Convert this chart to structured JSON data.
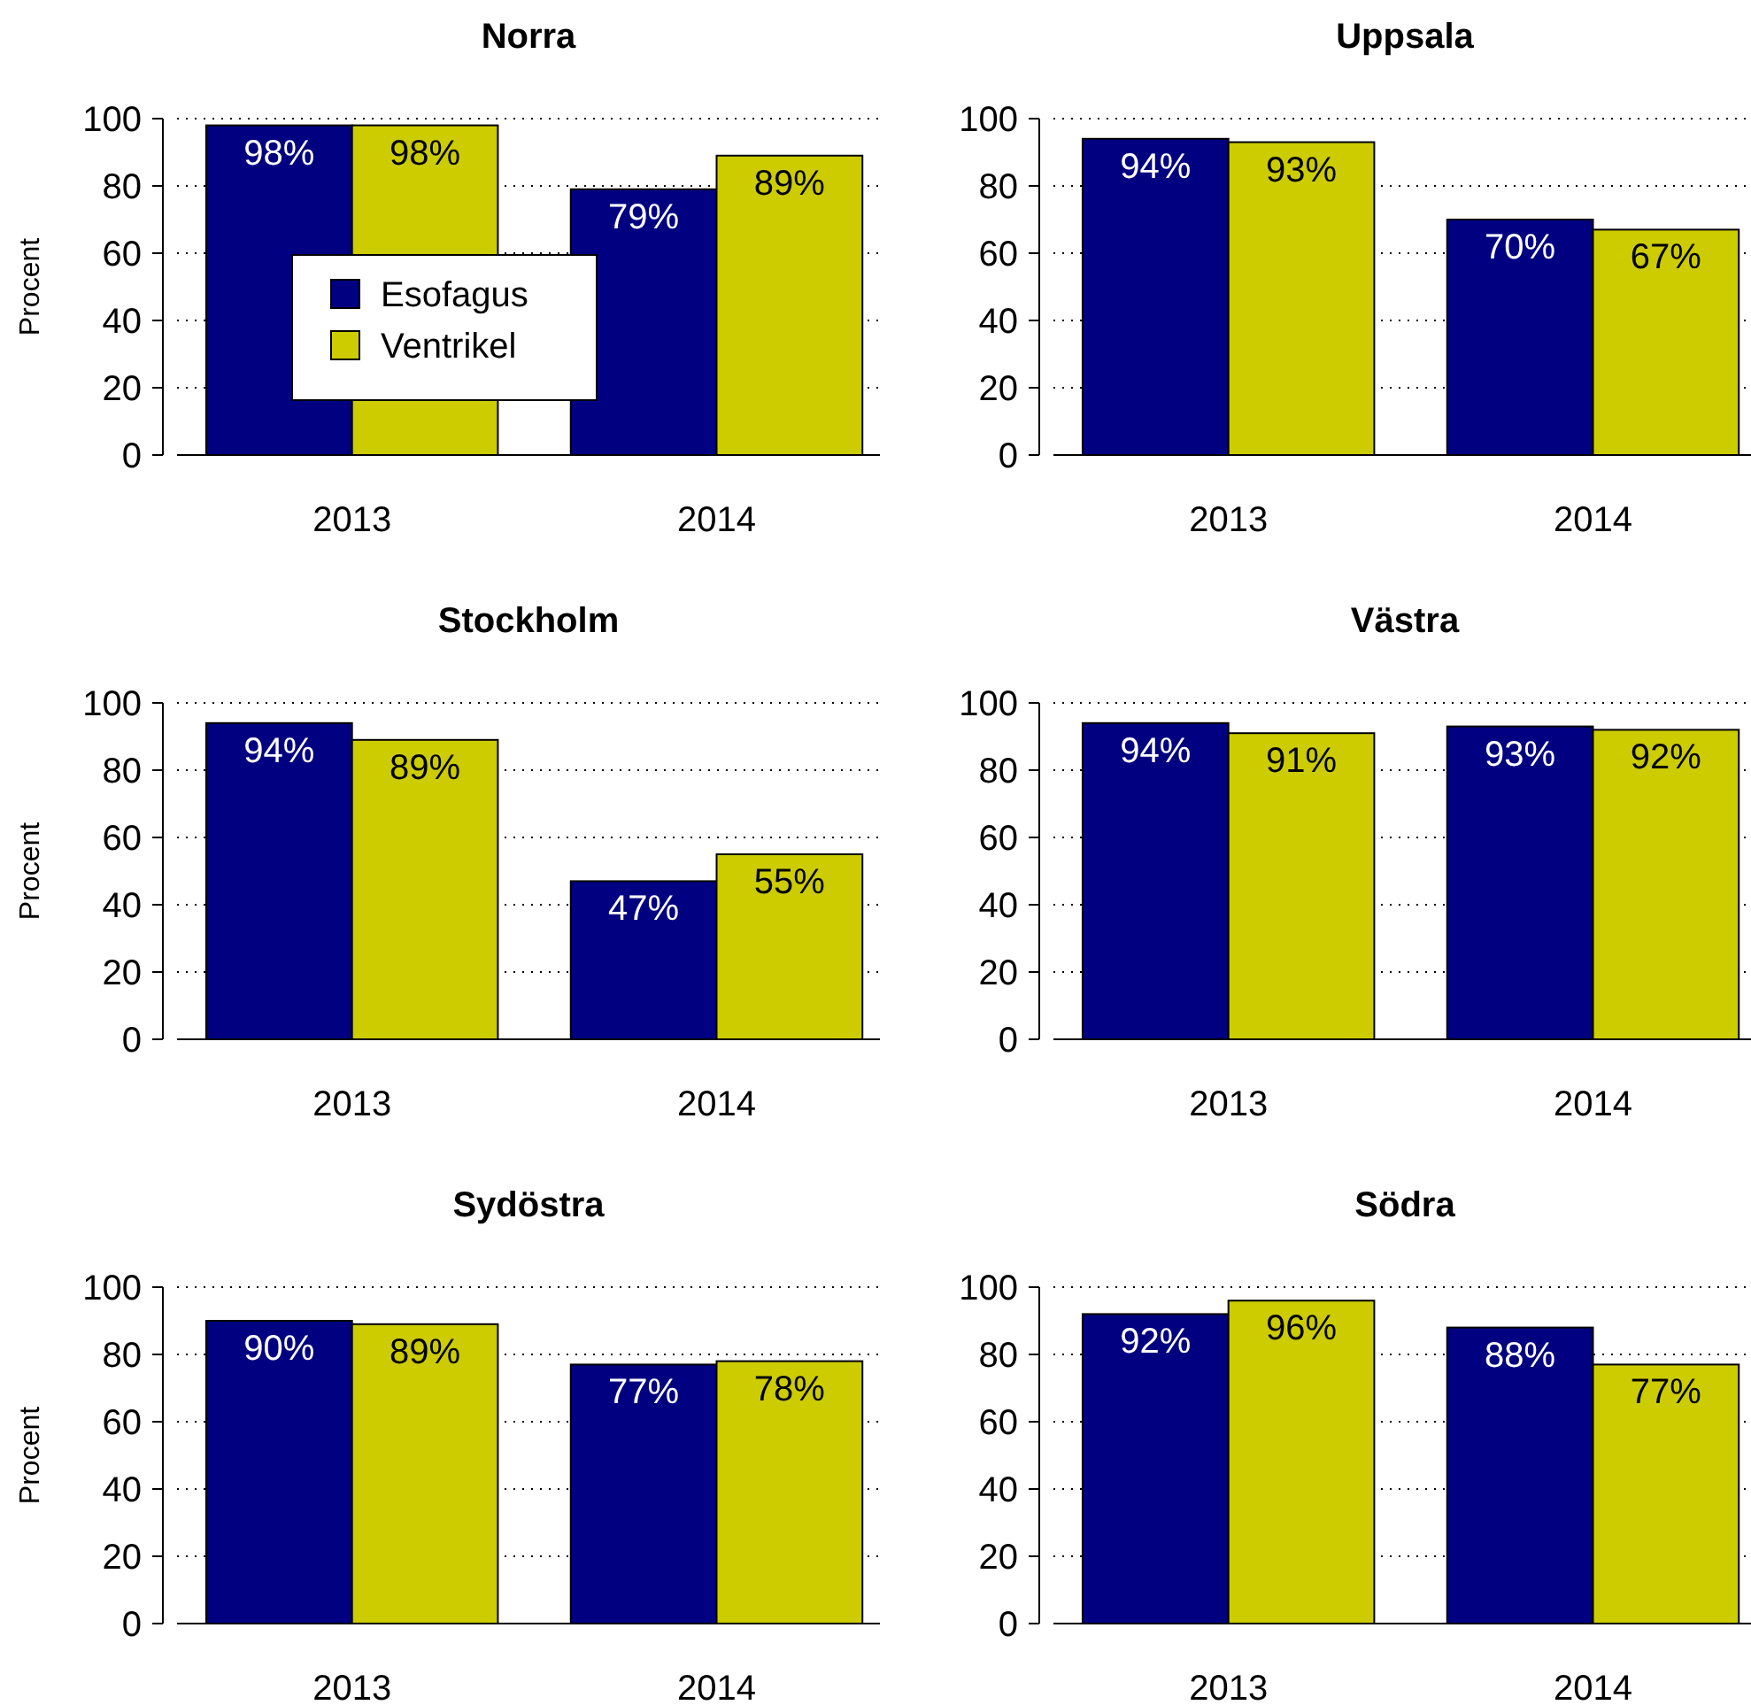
{
  "chart_data": [
    {
      "type": "bar",
      "title": "Norra",
      "ylabel": "Procent",
      "categories": [
        "2013",
        "2014"
      ],
      "series": [
        {
          "name": "Esofagus",
          "color": "#000080",
          "values": [
            98,
            79
          ],
          "value_labels": [
            "98%",
            "79%"
          ]
        },
        {
          "name": "Ventrikel",
          "color": "#cccc00",
          "values": [
            98,
            89
          ],
          "value_labels": [
            "98%",
            "89%"
          ]
        }
      ],
      "ylim": [
        0,
        100
      ],
      "yticks": [
        0,
        20,
        40,
        60,
        80,
        100
      ],
      "grid": "y",
      "legend": "left"
    },
    {
      "type": "bar",
      "title": "Uppsala",
      "categories": [
        "2013",
        "2014"
      ],
      "series": [
        {
          "color": "#000080",
          "values": [
            94,
            70
          ],
          "value_labels": [
            "94%",
            "70%"
          ]
        },
        {
          "color": "#cccc00",
          "values": [
            93,
            67
          ],
          "value_labels": [
            "93%",
            "67%"
          ]
        }
      ],
      "ylim": [
        0,
        100
      ],
      "yticks": [
        0,
        20,
        40,
        60,
        80,
        100
      ],
      "grid": "y"
    },
    {
      "type": "bar",
      "title": "Stockholm",
      "ylabel": "Procent",
      "categories": [
        "2013",
        "2014"
      ],
      "series": [
        {
          "color": "#000080",
          "values": [
            94,
            47
          ],
          "value_labels": [
            "94%",
            "47%"
          ]
        },
        {
          "color": "#cccc00",
          "values": [
            89,
            55
          ],
          "value_labels": [
            "89%",
            "55%"
          ]
        }
      ],
      "ylim": [
        0,
        100
      ],
      "yticks": [
        0,
        20,
        40,
        60,
        80,
        100
      ],
      "grid": "y"
    },
    {
      "type": "bar",
      "title": "Västra",
      "categories": [
        "2013",
        "2014"
      ],
      "series": [
        {
          "color": "#000080",
          "values": [
            94,
            93
          ],
          "value_labels": [
            "94%",
            "93%"
          ]
        },
        {
          "color": "#cccc00",
          "values": [
            91,
            92
          ],
          "value_labels": [
            "91%",
            "92%"
          ]
        }
      ],
      "ylim": [
        0,
        100
      ],
      "yticks": [
        0,
        20,
        40,
        60,
        80,
        100
      ],
      "grid": "y"
    },
    {
      "type": "bar",
      "title": "Sydöstra",
      "ylabel": "Procent",
      "categories": [
        "2013",
        "2014"
      ],
      "series": [
        {
          "color": "#000080",
          "values": [
            90,
            77
          ],
          "value_labels": [
            "90%",
            "77%"
          ]
        },
        {
          "color": "#cccc00",
          "values": [
            89,
            78
          ],
          "value_labels": [
            "89%",
            "78%"
          ]
        }
      ],
      "ylim": [
        0,
        100
      ],
      "yticks": [
        0,
        20,
        40,
        60,
        80,
        100
      ],
      "grid": "y"
    },
    {
      "type": "bar",
      "title": "Södra",
      "categories": [
        "2013",
        "2014"
      ],
      "series": [
        {
          "color": "#000080",
          "values": [
            92,
            88
          ],
          "value_labels": [
            "92%",
            "88%"
          ]
        },
        {
          "color": "#cccc00",
          "values": [
            96,
            77
          ],
          "value_labels": [
            "96%",
            "77%"
          ]
        }
      ],
      "ylim": [
        0,
        100
      ],
      "yticks": [
        0,
        20,
        40,
        60,
        80,
        100
      ],
      "grid": "y"
    }
  ]
}
